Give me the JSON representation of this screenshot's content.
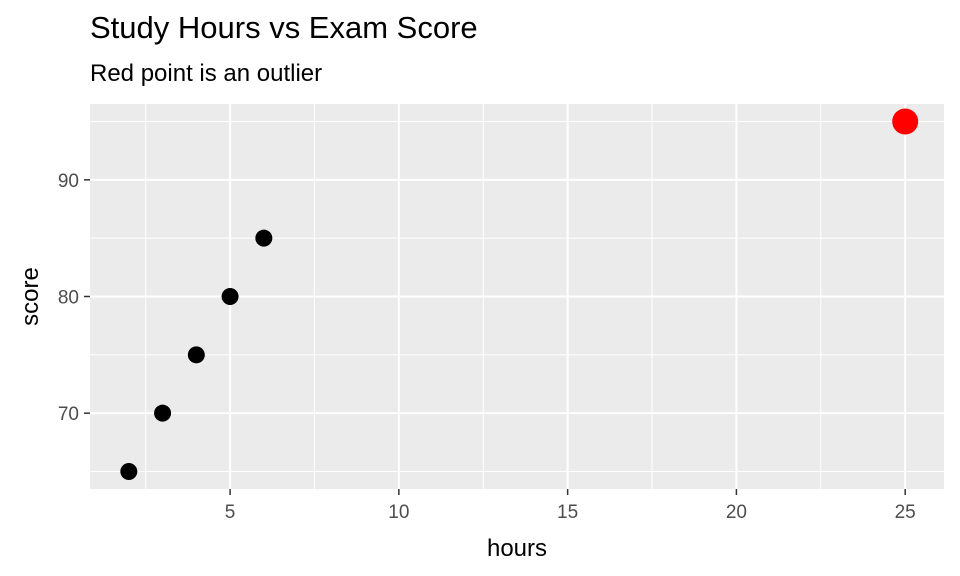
{
  "chart_data": {
    "type": "scatter",
    "title": "Study Hours vs Exam Score",
    "subtitle": "Red point is an outlier",
    "xlabel": "hours",
    "ylabel": "score",
    "xlim": [
      0.85,
      26.15
    ],
    "ylim": [
      63.5,
      96.5
    ],
    "xticks": [
      5,
      10,
      15,
      20,
      25
    ],
    "yticks": [
      70,
      80,
      90
    ],
    "x_tick_labels": [
      "5",
      "10",
      "15",
      "20",
      "25"
    ],
    "y_tick_labels": [
      "70",
      "80",
      "90"
    ],
    "grid": true,
    "legend": "none",
    "colors": {
      "panel": "#ebebeb",
      "gridline": "#ffffff",
      "point": "#000000",
      "outlier": "#ff0000"
    },
    "series": [
      {
        "x": [
          2,
          3,
          4,
          5,
          6
        ],
        "y": [
          65,
          70,
          75,
          80,
          85
        ],
        "color": "#000000"
      },
      {
        "x": [
          25
        ],
        "y": [
          95
        ],
        "color": "#ff0000",
        "outlier": true
      }
    ]
  }
}
